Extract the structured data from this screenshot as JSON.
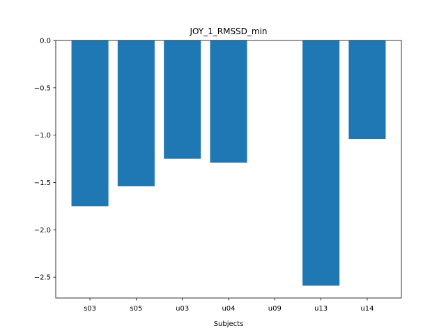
{
  "chart_data": {
    "type": "bar",
    "title": "JOY_1_RMSSD_min",
    "xlabel": "Subjects",
    "ylabel": "",
    "categories": [
      "s03",
      "s05",
      "u03",
      "u04",
      "u09",
      "u13",
      "u14"
    ],
    "values": [
      -1.75,
      -1.54,
      -1.25,
      -1.29,
      0.0,
      -2.59,
      -1.04
    ],
    "ylim": [
      -2.72,
      0.0
    ],
    "yticks": [
      0.0,
      -0.5,
      -1.0,
      -1.5,
      -2.0,
      -2.5
    ],
    "ytick_labels": [
      "0.0",
      "−0.5",
      "−1.0",
      "−1.5",
      "−2.0",
      "−2.5"
    ],
    "bar_color": "#1f77b4",
    "grid": false,
    "legend": false
  }
}
